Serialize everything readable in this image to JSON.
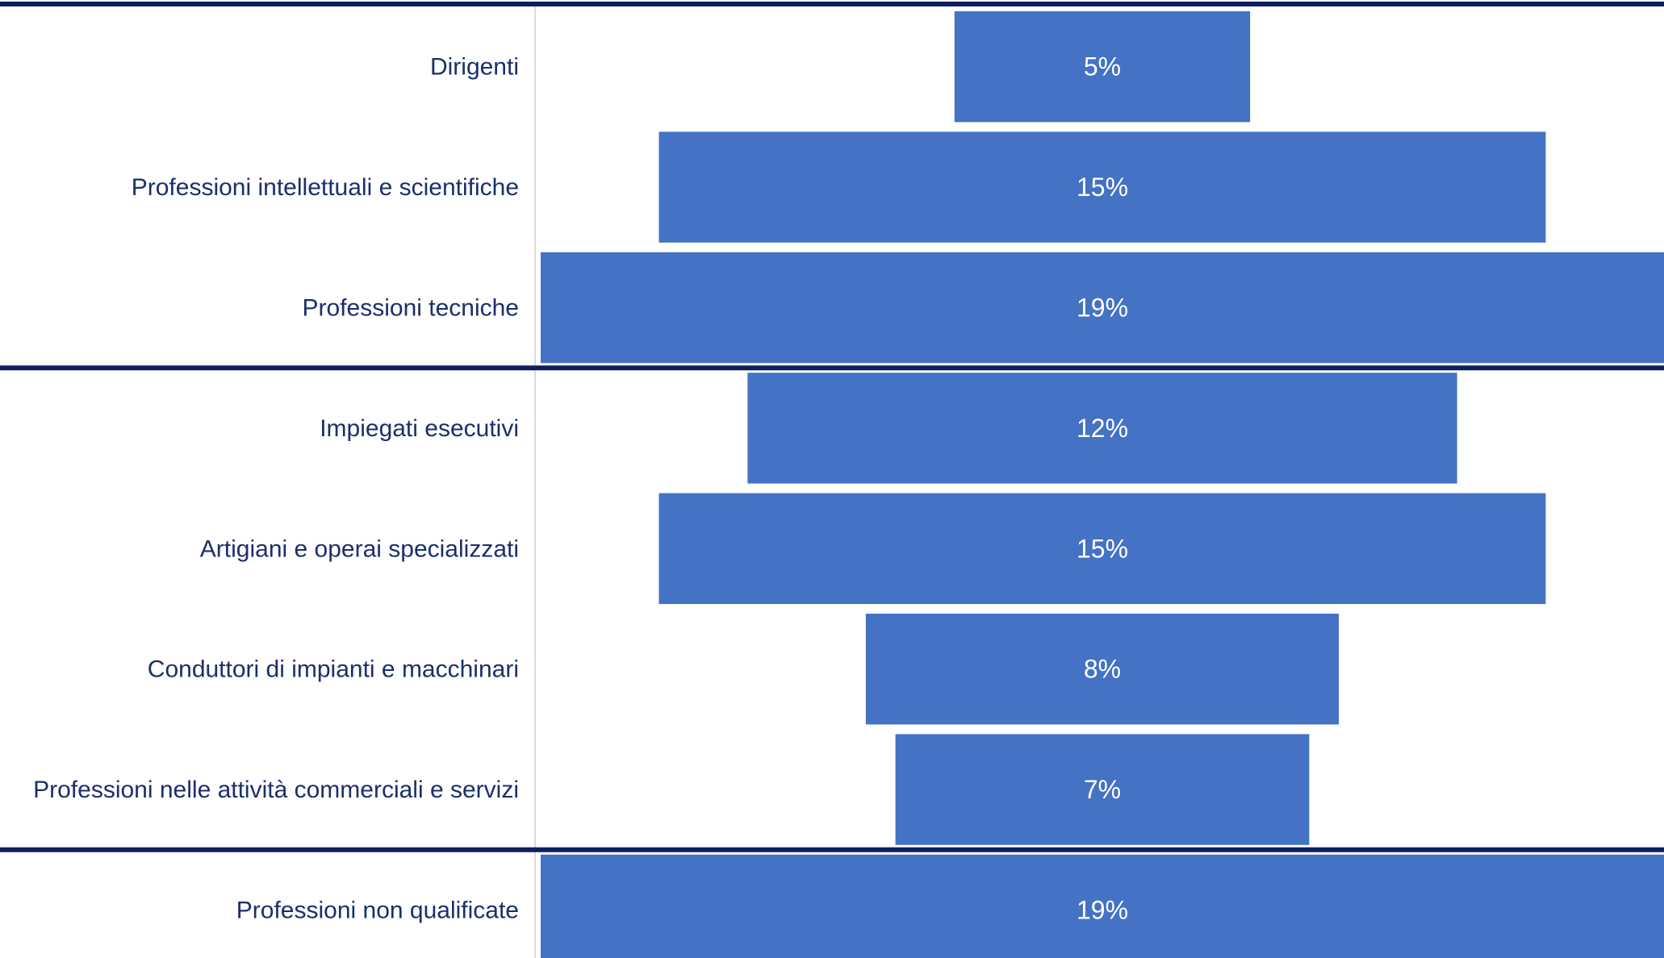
{
  "chart_data": {
    "type": "bar",
    "orientation": "funnel",
    "categories": [
      "Dirigenti",
      "Professioni intellettuali e scientifiche",
      "Professioni tecniche",
      "Impiegati esecutivi",
      "Artigiani e operai specializzati",
      "Conduttori di impianti e macchinari",
      "Professioni nelle attività commerciali e servizi",
      "Professioni non qualificate"
    ],
    "values": [
      5,
      15,
      19,
      12,
      15,
      8,
      7,
      19
    ],
    "value_labels": [
      "5%",
      "15%",
      "19%",
      "12%",
      "15%",
      "8%",
      "7%",
      "19%"
    ],
    "group_separators_after_index": [
      2,
      6
    ],
    "bar_color": "#4472c4",
    "separator_color": "#0d1f5c",
    "label_color": "#1b2f6b",
    "title": "",
    "xlabel": "",
    "ylabel": "",
    "grid": false,
    "legend": "none"
  }
}
